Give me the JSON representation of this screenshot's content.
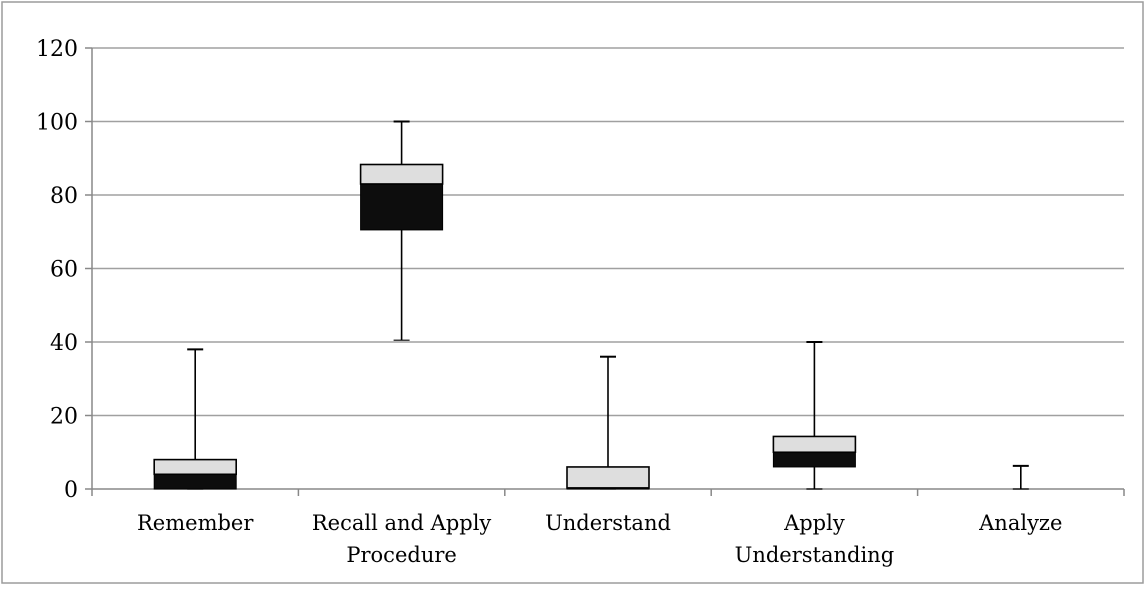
{
  "chart_data": {
    "type": "boxplot",
    "title": "",
    "xlabel": "",
    "ylabel": "",
    "ylim": [
      0,
      120
    ],
    "yticks": [
      0,
      20,
      40,
      60,
      80,
      100,
      120
    ],
    "grid": true,
    "legend": "none",
    "colors": {
      "upper_box": "#dedede",
      "lower_box": "#0d0d0d",
      "grid": "#a0a0a0",
      "frame": "#9c9c9c"
    },
    "categories": [
      {
        "label_lines": [
          "Remember"
        ],
        "min": 0,
        "q1": 0,
        "median": 4,
        "q3": 8,
        "max": 38
      },
      {
        "label_lines": [
          "Recall and Apply",
          "Procedure"
        ],
        "min": 40.5,
        "q1": 70.5,
        "median": 83,
        "q3": 88.3,
        "max": 100
      },
      {
        "label_lines": [
          "Understand"
        ],
        "min": 0,
        "q1": 0,
        "median": 0.3,
        "q3": 6,
        "max": 36
      },
      {
        "label_lines": [
          "Apply",
          "Understanding"
        ],
        "min": 0,
        "q1": 6,
        "median": 10,
        "q3": 14.3,
        "max": 40
      },
      {
        "label_lines": [
          "Analyze"
        ],
        "min": 0,
        "q1": 0,
        "median": 0,
        "q3": 0,
        "max": 6.3
      }
    ]
  }
}
